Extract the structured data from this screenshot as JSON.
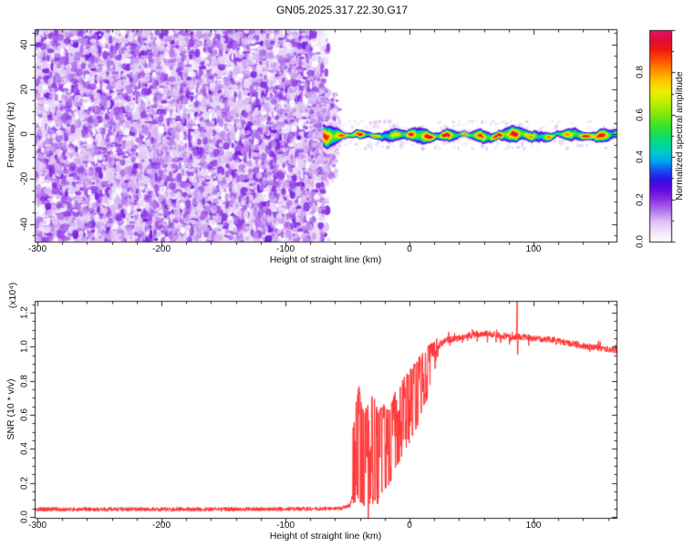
{
  "title": "GN05.2025.317.22.30.G17",
  "colors": {
    "background": "#ffffff",
    "frame": "#222222",
    "snr_curve": "#ff3333",
    "noise_background": "#e7d9f8"
  },
  "chart_data": [
    {
      "type": "heatmap",
      "panel": "spectrogram",
      "title": "GN05.2025.317.22.30.G17",
      "xlabel": "Height of straight line (km)",
      "ylabel": "Frequency (Hz)",
      "xlim": [
        -302,
        167
      ],
      "ylim": [
        -48,
        46.7
      ],
      "x_ticks": [
        -300,
        -200,
        -100,
        0,
        100
      ],
      "x_minor_step": 20,
      "y_ticks": [
        40,
        20,
        0,
        -20,
        -40
      ],
      "y_minor_step": 5,
      "grid": false,
      "colorbar": {
        "label": "Normalized spectral amplitude",
        "ticks": [
          0.0,
          0.2,
          0.4,
          0.6,
          0.8
        ],
        "range": [
          0,
          1
        ],
        "position": "right"
      },
      "colormap_stops": [
        [
          0.0,
          "#ffffff"
        ],
        [
          0.05,
          "#f0e4fa"
        ],
        [
          0.1,
          "#ddbcf4"
        ],
        [
          0.14,
          "#b880ee"
        ],
        [
          0.18,
          "#9a4ae8"
        ],
        [
          0.22,
          "#7a1ce4"
        ],
        [
          0.26,
          "#5508e0"
        ],
        [
          0.3,
          "#2d14e8"
        ],
        [
          0.34,
          "#1553f2"
        ],
        [
          0.38,
          "#00a0f0"
        ],
        [
          0.42,
          "#00c8d0"
        ],
        [
          0.46,
          "#00d898"
        ],
        [
          0.5,
          "#10dc60"
        ],
        [
          0.55,
          "#3ce22e"
        ],
        [
          0.6,
          "#7ce80e"
        ],
        [
          0.66,
          "#c0ee00"
        ],
        [
          0.71,
          "#f0ee00"
        ],
        [
          0.76,
          "#ffc800"
        ],
        [
          0.81,
          "#ff9000"
        ],
        [
          0.86,
          "#ff5000"
        ],
        [
          0.91,
          "#f01810"
        ],
        [
          0.96,
          "#e60a3c"
        ],
        [
          1.0,
          "#de1468"
        ]
      ],
      "features": {
        "noise_field": {
          "x_range_km": [
            -302,
            -68
          ],
          "freq_range_hz": [
            -48,
            46.7
          ],
          "amplitude_range": [
            0.05,
            0.22
          ],
          "description": "dense purple speckle noise filling left portion of panel"
        },
        "transition_burst": {
          "x_range_km": [
            -80,
            -58
          ],
          "freq_extent_hz": [
            -20,
            20
          ],
          "amplitude_range": [
            0.05,
            0.2
          ],
          "description": "ragged purple burst where noise collapses into carrier line"
        },
        "carrier_stripe": {
          "x_range_km": [
            -70,
            167
          ],
          "center_freq_hz": -0.5,
          "glow_halfwidth_hz": 3.5,
          "core_amplitude_range": [
            0.45,
            1.0
          ],
          "description": "narrow horizontal rainbow stripe (red core, yellow/green/cyan/blue/violet fringes) near 0 Hz"
        }
      }
    },
    {
      "type": "line",
      "panel": "snr",
      "xlabel": "Height of straight line (km)",
      "ylabel": "SNR (10 * v/v)",
      "scale_note": "(x10⁴)",
      "xlim": [
        -302,
        167
      ],
      "ylim": [
        0,
        1.27
      ],
      "x_ticks": [
        -300,
        -200,
        -100,
        0,
        100
      ],
      "x_minor_step": 20,
      "y_ticks": [
        0,
        0.2,
        0.4,
        0.6,
        0.8,
        1.0,
        1.2
      ],
      "y_minor_step": 0.05,
      "grid": false,
      "series": [
        {
          "name": "SNR",
          "color": "#ff3333",
          "base_keypoints": [
            [
              -302,
              0.045
            ],
            [
              -120,
              0.045
            ],
            [
              -70,
              0.048
            ],
            [
              -55,
              0.05
            ],
            [
              -48,
              0.07
            ],
            [
              -45,
              0.15
            ],
            [
              -40,
              0.2
            ],
            [
              -35,
              0.24
            ],
            [
              -30,
              0.3
            ],
            [
              -25,
              0.35
            ],
            [
              -20,
              0.42
            ],
            [
              -15,
              0.5
            ],
            [
              -10,
              0.57
            ],
            [
              -5,
              0.62
            ],
            [
              0,
              0.68
            ],
            [
              5,
              0.75
            ],
            [
              10,
              0.82
            ],
            [
              15,
              0.9
            ],
            [
              20,
              0.97
            ],
            [
              25,
              1.02
            ],
            [
              30,
              1.04
            ],
            [
              40,
              1.05
            ],
            [
              50,
              1.07
            ],
            [
              58,
              1.08
            ],
            [
              70,
              1.07
            ],
            [
              80,
              1.06
            ],
            [
              90,
              1.06
            ],
            [
              100,
              1.05
            ],
            [
              115,
              1.04
            ],
            [
              130,
              1.02
            ],
            [
              145,
              1.0
            ],
            [
              166,
              0.98
            ]
          ],
          "spike_region_km": [
            -46,
            23
          ],
          "spike_envelope_lo": [
            [
              -46,
              0.08
            ],
            [
              -35,
              0.08
            ],
            [
              -25,
              0.12
            ],
            [
              -15,
              0.22
            ],
            [
              -5,
              0.38
            ],
            [
              0,
              0.45
            ],
            [
              5,
              0.52
            ],
            [
              10,
              0.62
            ],
            [
              15,
              0.72
            ],
            [
              20,
              0.86
            ],
            [
              23,
              0.96
            ]
          ],
          "spike_envelope_hi": [
            [
              -46,
              0.5
            ],
            [
              -41,
              0.77
            ],
            [
              -37,
              0.6
            ],
            [
              -33,
              0.66
            ],
            [
              -29,
              0.72
            ],
            [
              -25,
              0.6
            ],
            [
              -21,
              0.66
            ],
            [
              -17,
              0.62
            ],
            [
              -13,
              0.7
            ],
            [
              -9,
              0.76
            ],
            [
              -5,
              0.8
            ],
            [
              0,
              0.85
            ],
            [
              5,
              0.9
            ],
            [
              10,
              0.95
            ],
            [
              15,
              1.0
            ],
            [
              20,
              1.02
            ],
            [
              23,
              1.04
            ]
          ],
          "spike_feature": [
            [
              86.2,
              1.06
            ],
            [
              86.6,
              1.18
            ],
            [
              86.8,
              1.27
            ],
            [
              87.0,
              1.0
            ],
            [
              87.3,
              0.93
            ],
            [
              87.7,
              1.08
            ],
            [
              88.2,
              1.05
            ]
          ],
          "below_axis_dip_km": -33.2,
          "quiet_noise_amp": 0.012,
          "plateau_noise_amp": 0.025
        }
      ]
    }
  ]
}
